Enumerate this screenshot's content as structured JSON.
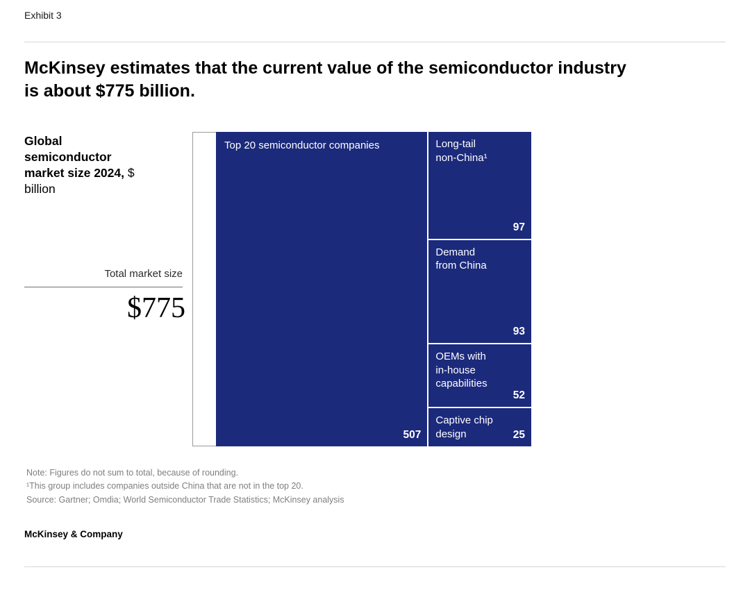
{
  "page": {
    "exhibit_label": "Exhibit 3",
    "title_line1": "McKinsey estimates that the current value of the semiconductor industry",
    "title_line2": "is about $775 billion.",
    "footer_brand": "McKinsey & Company"
  },
  "chart_data": {
    "type": "treemap",
    "title": "Global semiconductor market size 2024, $ billion",
    "heading_bold": "Global semiconductor market size 2024,",
    "heading_unit": "$ billion",
    "total_label": "Total market size",
    "total_value": "$775",
    "total_numeric": 775,
    "segments": [
      {
        "label": "Top 20 semiconductor companies",
        "value": 507
      },
      {
        "label": "Long-tail\nnon-China¹",
        "value": 97
      },
      {
        "label": "Demand\nfrom China",
        "value": 93
      },
      {
        "label": "OEMs with\nin-house\ncapabilities",
        "value": 52
      },
      {
        "label": "Captive chip\ndesign",
        "value": 25
      }
    ],
    "colors": {
      "block": "#1C2A7C",
      "text": "#ffffff"
    }
  },
  "notes": {
    "note1": "Note: Figures do not sum to total, because of rounding.",
    "note2": "¹This group includes companies outside China that are not in the top 20.",
    "source": "Source: Gartner; Omdia; World Semiconductor Trade Statistics; McKinsey analysis"
  }
}
